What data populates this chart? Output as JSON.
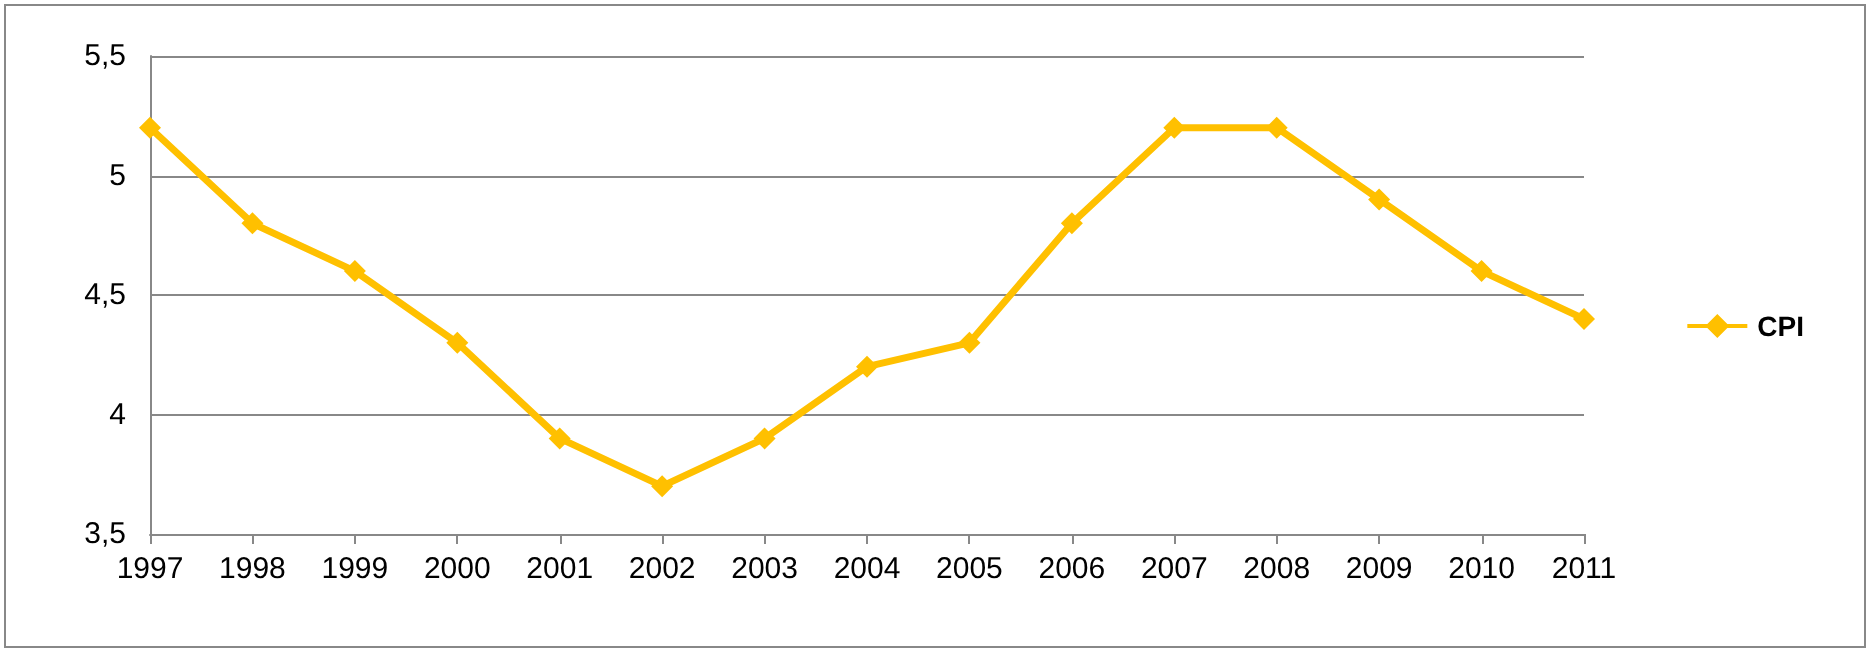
{
  "chart_data": {
    "type": "line",
    "categories": [
      "1997",
      "1998",
      "1999",
      "2000",
      "2001",
      "2002",
      "2003",
      "2004",
      "2005",
      "2006",
      "2007",
      "2008",
      "2009",
      "2010",
      "2011"
    ],
    "series": [
      {
        "name": "CPI",
        "color": "#ffc000",
        "values": [
          5.2,
          4.8,
          4.6,
          4.3,
          3.9,
          3.7,
          3.9,
          4.2,
          4.3,
          4.8,
          5.2,
          5.2,
          4.9,
          4.6,
          4.4
        ]
      }
    ],
    "ylim": [
      3.5,
      5.5
    ],
    "yticks": [
      {
        "value": 3.5,
        "label": "3,5"
      },
      {
        "value": 4,
        "label": "4"
      },
      {
        "value": 4.5,
        "label": "4,5"
      },
      {
        "value": 5,
        "label": "5"
      },
      {
        "value": 5.5,
        "label": "5,5"
      }
    ],
    "grid": "y",
    "legend": "right",
    "marker": "diamond",
    "line_style": "solid"
  }
}
